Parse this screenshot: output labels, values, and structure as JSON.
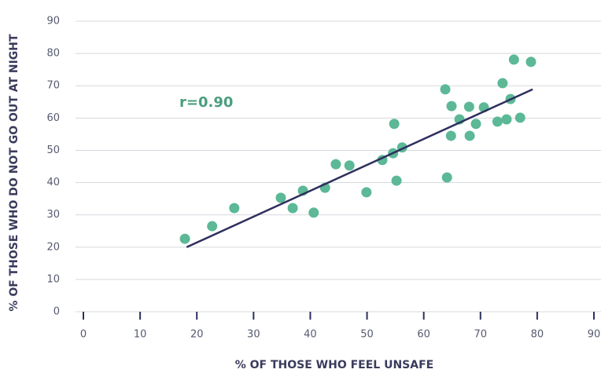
{
  "chart_data": {
    "type": "scatter",
    "xlabel": "% OF THOSE WHO FEEL UNSAFE",
    "ylabel": "% OF THOSE WHO DO NOT GO OUT AT NIGHT",
    "annotation": "r=0.90",
    "color": "#5cb896",
    "trend_color": "#2e2f5e",
    "grid": true,
    "x": [
      17.9,
      22.7,
      26.6,
      34.8,
      36.9,
      38.7,
      40.6,
      42.6,
      44.5,
      46.9,
      49.9,
      52.7,
      54.6,
      55.2,
      54.8,
      56.2,
      63.8,
      64.1,
      64.8,
      64.9,
      66.3,
      68.0,
      68.1,
      69.2,
      70.6,
      73.0,
      73.9,
      74.6,
      75.3,
      75.9,
      77.0,
      78.9
    ],
    "values": [
      22.6,
      26.5,
      32.1,
      35.3,
      32.1,
      37.5,
      30.7,
      38.4,
      45.7,
      45.3,
      37.0,
      47.0,
      49.1,
      40.6,
      58.2,
      50.9,
      68.9,
      41.6,
      54.5,
      63.7,
      59.6,
      63.5,
      54.5,
      58.2,
      63.3,
      58.9,
      70.8,
      59.6,
      65.9,
      78.1,
      60.1,
      77.4
    ],
    "trendline": {
      "x": [
        18.2,
        79.2
      ],
      "y": [
        20.0,
        68.9
      ]
    },
    "xlim": [
      0,
      90
    ],
    "xticks": [
      0,
      10,
      20,
      30,
      40,
      50,
      60,
      70,
      80,
      90
    ],
    "ylim": [
      0,
      90
    ],
    "yticks": [
      0,
      10,
      20,
      30,
      40,
      50,
      60,
      70,
      80,
      90
    ]
  }
}
